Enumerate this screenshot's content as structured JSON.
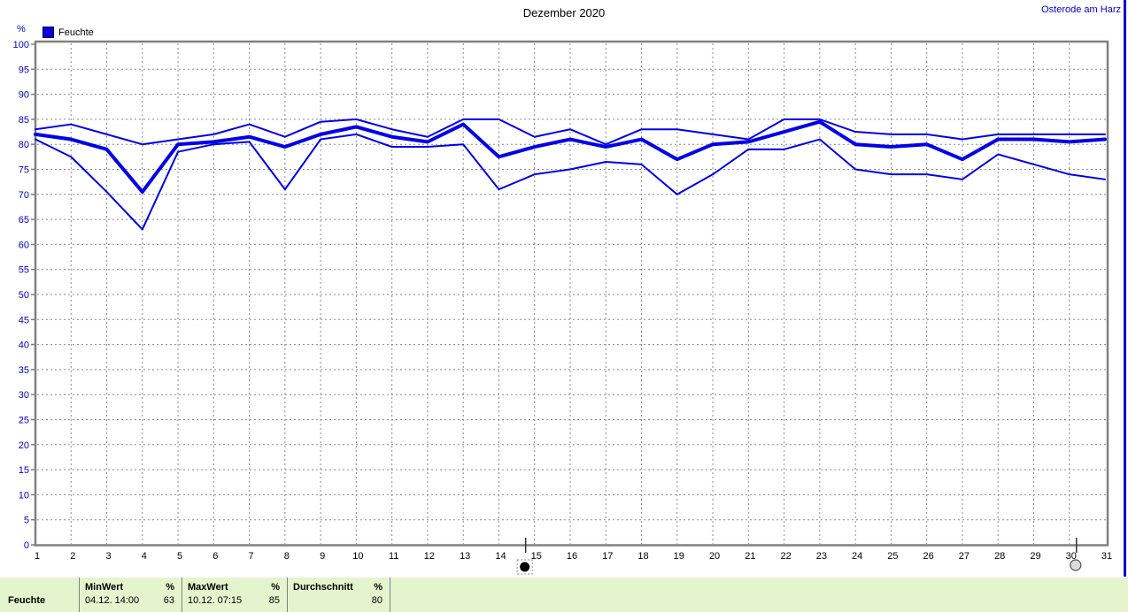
{
  "title": "Dezember 2020",
  "station": "Osterode am Harz",
  "legend": {
    "label": "Feuchte"
  },
  "colors": {
    "line": "#0000E8",
    "y_label": "#0000CC",
    "x_label": "#000000",
    "grid": "#8A8A8A",
    "border": "#808080",
    "table_bg": "#E4F5CE",
    "station_text": "#0000D6"
  },
  "chart_data": {
    "type": "line",
    "title": "Dezember 2020",
    "ylabel": "%",
    "ylim": [
      0,
      100
    ],
    "ytick_step": 5,
    "grid": true,
    "legend_position": "top-left",
    "legend_entries": [
      "Feuchte"
    ],
    "x": [
      1,
      2,
      3,
      4,
      5,
      6,
      7,
      8,
      9,
      10,
      11,
      12,
      13,
      14,
      15,
      16,
      17,
      18,
      19,
      20,
      21,
      22,
      23,
      24,
      25,
      26,
      27,
      28,
      29,
      30,
      31
    ],
    "series": [
      {
        "name": "Max",
        "values": [
          83,
          84,
          82,
          80,
          81,
          82,
          84,
          81.5,
          84.5,
          85,
          83,
          81.5,
          85,
          85,
          81.5,
          83,
          80,
          83,
          83,
          82,
          81,
          85,
          85,
          82.5,
          82,
          82,
          81,
          82,
          82,
          82,
          82
        ],
        "width": 2
      },
      {
        "name": "Durchschnitt",
        "values": [
          82,
          81,
          79,
          70.5,
          80,
          80.5,
          81.5,
          79.5,
          82,
          83.5,
          81.5,
          80.5,
          84,
          77.5,
          79.5,
          81,
          79.5,
          81,
          77,
          80,
          80.5,
          82.5,
          84.5,
          80,
          79.5,
          80,
          77,
          81,
          81,
          80.5,
          81
        ],
        "width": 4
      },
      {
        "name": "Min",
        "values": [
          81,
          77.5,
          70.5,
          63,
          78.5,
          80,
          80.5,
          71,
          81,
          82,
          79.5,
          79.5,
          80,
          71,
          74,
          75,
          76.5,
          76,
          70,
          74,
          79,
          79,
          81,
          75,
          74,
          74,
          73,
          78,
          76,
          74,
          73
        ],
        "width": 2
      }
    ],
    "moon_markers": [
      {
        "phase": "new-moon",
        "day": 14.75,
        "selected": true
      },
      {
        "phase": "full-moon",
        "day": 30.2,
        "selected": false
      }
    ]
  },
  "summary_table": {
    "row_label": "Feuchte",
    "groups": [
      {
        "header": "MinWert",
        "unit": "%",
        "time": "04.12.  14:00",
        "value": "63"
      },
      {
        "header": "MaxWert",
        "unit": "%",
        "time": "10.12.  07:15",
        "value": "85"
      },
      {
        "header": "Durchschnitt",
        "unit": "%",
        "time": "",
        "value": "80"
      }
    ]
  }
}
